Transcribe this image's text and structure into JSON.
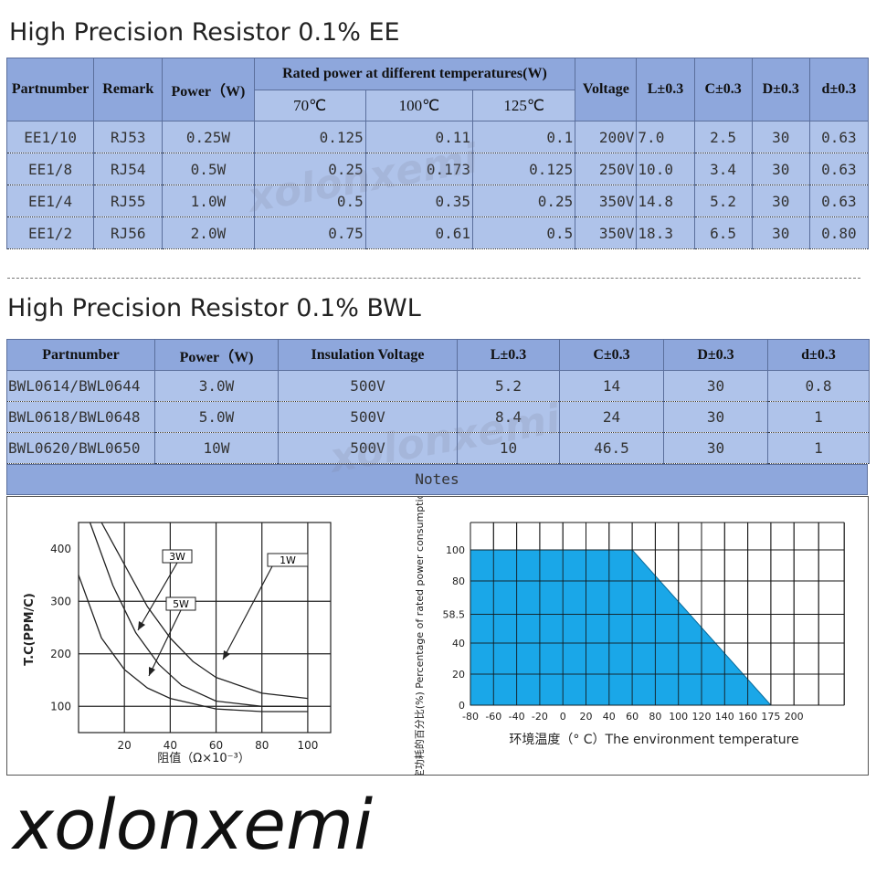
{
  "ee": {
    "title": "High Precision Resistor 0.1% EE",
    "headers": {
      "partnumber": "Partnumber",
      "remark": "Remark",
      "power": "Power（W)",
      "rated": "Rated power at different temperatures(W)",
      "t70": "70℃",
      "t100": "100℃",
      "t125": "125℃",
      "voltage": "Voltage",
      "L": "L±0.3",
      "C": "C±0.3",
      "D": "D±0.3",
      "d": "d±0.3"
    },
    "rows": [
      {
        "part": "EE1/10",
        "remark": "RJ53",
        "power": "0.25W",
        "p70": "0.125",
        "p100": "0.11",
        "p125": "0.1",
        "voltage": "200V",
        "L": "7.0",
        "C": "2.5",
        "D": "30",
        "d": "0.63"
      },
      {
        "part": "EE1/8",
        "remark": "RJ54",
        "power": "0.5W",
        "p70": "0.25",
        "p100": "0.173",
        "p125": "0.125",
        "voltage": "250V",
        "L": "10.0",
        "C": "3.4",
        "D": "30",
        "d": "0.63"
      },
      {
        "part": "EE1/4",
        "remark": "RJ55",
        "power": "1.0W",
        "p70": "0.5",
        "p100": "0.35",
        "p125": "0.25",
        "voltage": "350V",
        "L": "14.8",
        "C": "5.2",
        "D": "30",
        "d": "0.63"
      },
      {
        "part": "EE1/2",
        "remark": "RJ56",
        "power": "2.0W",
        "p70": "0.75",
        "p100": "0.61",
        "p125": "0.5",
        "voltage": "350V",
        "L": "18.3",
        "C": "6.5",
        "D": "30",
        "d": "0.80"
      }
    ]
  },
  "bwl": {
    "title": "High Precision Resistor 0.1% BWL",
    "headers": {
      "partnumber": "Partnumber",
      "power": "Power（W)",
      "insulation": "Insulation Voltage",
      "L": "L±0.3",
      "C": "C±0.3",
      "D": "D±0.3",
      "d": "d±0.3"
    },
    "rows": [
      {
        "part": "BWL0614/BWL0644",
        "power": "3.0W",
        "insulation": "500V",
        "L": "5.2",
        "C": "14",
        "D": "30",
        "d": "0.8"
      },
      {
        "part": "BWL0618/BWL0648",
        "power": "5.0W",
        "insulation": "500V",
        "L": "8.4",
        "C": "24",
        "D": "30",
        "d": "1"
      },
      {
        "part": "BWL0620/BWL0650",
        "power": "10W",
        "insulation": "500V",
        "L": "10",
        "C": "46.5",
        "D": "30",
        "d": "1"
      }
    ],
    "notes": "Notes"
  },
  "chart_data": [
    {
      "type": "line",
      "title": "",
      "ylabel": "T.C(PPM/C)",
      "xlabel": "阻值（Ω×10⁻³）",
      "x_ticks": [
        "20",
        "40",
        "60",
        "80",
        "100"
      ],
      "y_ticks": [
        "100",
        "200",
        "300",
        "400"
      ],
      "xlim": [
        0,
        110
      ],
      "ylim": [
        50,
        450
      ],
      "series": [
        {
          "name": "1W",
          "x": [
            10,
            20,
            30,
            40,
            50,
            60,
            80,
            100
          ],
          "y": [
            470,
            370,
            290,
            230,
            185,
            155,
            125,
            115
          ]
        },
        {
          "name": "3W",
          "x": [
            5,
            15,
            25,
            35,
            45,
            60,
            80,
            100
          ],
          "y": [
            470,
            330,
            240,
            180,
            140,
            110,
            100,
            100
          ]
        },
        {
          "name": "5W",
          "x": [
            0,
            10,
            20,
            30,
            40,
            60,
            80,
            100
          ],
          "y": [
            350,
            230,
            170,
            135,
            115,
            95,
            90,
            90
          ]
        }
      ]
    },
    {
      "type": "area",
      "title": "",
      "ylabel": "额定功耗的百分比(%) Percentage of rated power consumption(%)",
      "xlabel": "环境温度（° C）The environment temperature",
      "x_ticks": [
        "-80",
        "-60",
        "-40",
        "-20",
        "0",
        "20",
        "40",
        "60",
        "80",
        "100",
        "120",
        "140",
        "160",
        "175",
        "200"
      ],
      "y_ticks": [
        "0",
        "20",
        "40",
        "58.5",
        "80",
        "100"
      ],
      "series": [
        {
          "x": [
            -80,
            60,
            175
          ],
          "y": [
            100,
            100,
            0
          ]
        }
      ]
    }
  ],
  "watermark": "xolonxemi",
  "logo": "xolonxemi"
}
